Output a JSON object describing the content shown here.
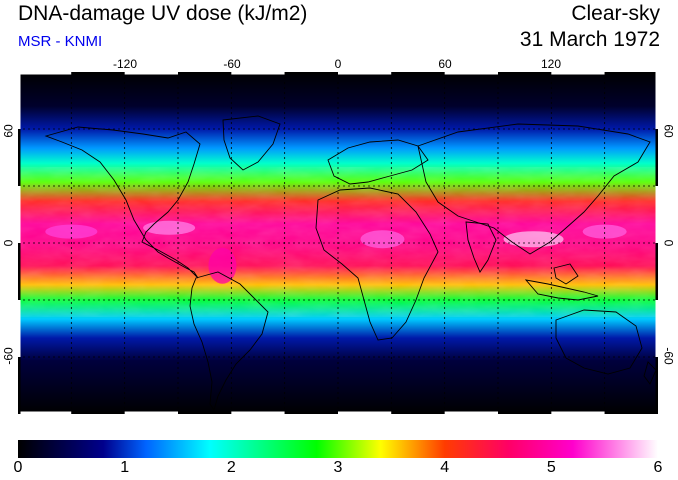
{
  "header": {
    "title": "DNA-damage UV dose (kJ/m2)",
    "credit": "MSR - KNMI",
    "condition": "Clear-sky",
    "date": "31 March 1972"
  },
  "colors": {
    "credit": "#0000ee",
    "background": "#000000",
    "gridline": "#000000"
  },
  "map": {
    "lon_ticks": [
      "-120",
      "-60",
      "0",
      "60",
      "120"
    ],
    "lat_ticks": [
      "60",
      "0",
      "-60"
    ],
    "lon_values": [
      -120,
      -60,
      0,
      60,
      120
    ],
    "lat_values": [
      60,
      0,
      -60
    ],
    "grid_lon_step": 30,
    "grid_lat_step": 30,
    "lon_range": [
      -180,
      180
    ],
    "lat_range": [
      -90,
      90
    ]
  },
  "colorbar": {
    "ticks": [
      "0",
      "1",
      "2",
      "3",
      "4",
      "5",
      "6"
    ],
    "min": 0,
    "max": 6,
    "stops": [
      {
        "v": 0.0,
        "c": "#000000"
      },
      {
        "v": 0.8,
        "c": "#00008c"
      },
      {
        "v": 1.2,
        "c": "#0064ff"
      },
      {
        "v": 1.8,
        "c": "#00ffff"
      },
      {
        "v": 2.8,
        "c": "#00ff00"
      },
      {
        "v": 3.4,
        "c": "#ffff00"
      },
      {
        "v": 4.0,
        "c": "#ff3c00"
      },
      {
        "v": 4.6,
        "c": "#ff0066"
      },
      {
        "v": 5.2,
        "c": "#ff00cc"
      },
      {
        "v": 6.0,
        "c": "#ffffff"
      }
    ]
  },
  "dose_profile": [
    {
      "lat": 90,
      "v": 0.0
    },
    {
      "lat": 72,
      "v": 0.25
    },
    {
      "lat": 60,
      "v": 0.9
    },
    {
      "lat": 50,
      "v": 1.4
    },
    {
      "lat": 42,
      "v": 2.0
    },
    {
      "lat": 32,
      "v": 3.0
    },
    {
      "lat": 22,
      "v": 4.2
    },
    {
      "lat": 10,
      "v": 4.9
    },
    {
      "lat": 0,
      "v": 4.8
    },
    {
      "lat": -12,
      "v": 4.5
    },
    {
      "lat": -22,
      "v": 3.6
    },
    {
      "lat": -30,
      "v": 2.6
    },
    {
      "lat": -40,
      "v": 1.6
    },
    {
      "lat": -50,
      "v": 0.9
    },
    {
      "lat": -62,
      "v": 0.35
    },
    {
      "lat": -90,
      "v": 0.0
    }
  ]
}
